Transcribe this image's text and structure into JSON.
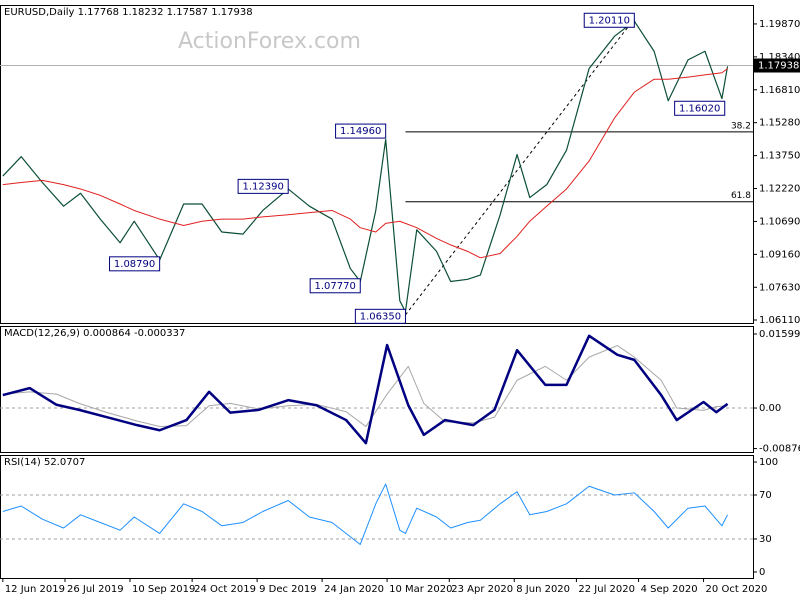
{
  "chart_data": [
    {
      "type": "line",
      "title": "EURUSD,Daily  1.17768 1.18232 1.17587 1.17938",
      "watermark": "ActionForex.com",
      "x": [
        "2019-06-12",
        "2019-06-25",
        "2019-07-10",
        "2019-07-25",
        "2019-08-06",
        "2019-08-20",
        "2019-09-03",
        "2019-09-13",
        "2019-10-01",
        "2019-10-18",
        "2019-10-31",
        "2019-11-14",
        "2019-11-29",
        "2019-12-13",
        "2019-12-31",
        "2020-01-15",
        "2020-01-31",
        "2020-02-13",
        "2020-02-20",
        "2020-03-02",
        "2020-03-09",
        "2020-03-19",
        "2020-03-23",
        "2020-03-31",
        "2020-04-14",
        "2020-04-24",
        "2020-05-06",
        "2020-05-15",
        "2020-05-29",
        "2020-06-10",
        "2020-06-19",
        "2020-07-01",
        "2020-07-15",
        "2020-07-31",
        "2020-08-18",
        "2020-09-01",
        "2020-09-15",
        "2020-09-25",
        "2020-10-09",
        "2020-10-21",
        "2020-11-02",
        "2020-11-06"
      ],
      "series": [
        {
          "color": "#0b4f35",
          "width": 1.2,
          "values": [
            1.128,
            1.137,
            1.125,
            1.114,
            1.12,
            1.108,
            1.097,
            1.107,
            1.089,
            1.115,
            1.115,
            1.102,
            1.101,
            1.112,
            1.122,
            1.114,
            1.108,
            1.085,
            1.079,
            1.112,
            1.145,
            1.07,
            1.065,
            1.103,
            1.093,
            1.079,
            1.08,
            1.082,
            1.11,
            1.138,
            1.118,
            1.124,
            1.14,
            1.178,
            1.193,
            1.2,
            1.186,
            1.163,
            1.182,
            1.186,
            1.164,
            1.179
          ]
        },
        {
          "color": "#e02020",
          "width": 1,
          "values": [
            1.124,
            1.125,
            1.126,
            1.124,
            1.122,
            1.119,
            1.115,
            1.112,
            1.108,
            1.105,
            1.107,
            1.108,
            1.108,
            1.109,
            1.11,
            1.111,
            1.112,
            1.108,
            1.104,
            1.102,
            1.106,
            1.107,
            1.106,
            1.104,
            1.099,
            1.096,
            1.093,
            1.09,
            1.092,
            1.1,
            1.107,
            1.114,
            1.122,
            1.135,
            1.155,
            1.167,
            1.173,
            1.173,
            1.174,
            1.175,
            1.176,
            1.178
          ]
        }
      ],
      "xlim": [
        "2019-06-10",
        "2020-11-24"
      ],
      "ylim": [
        1.0597,
        1.2075
      ],
      "yticks": [
        {
          "value": 1.1987,
          "label": "1.19870"
        },
        {
          "value": 1.1834,
          "label": "1.18340"
        },
        {
          "value": 1.1681,
          "label": "1.16810"
        },
        {
          "value": 1.1528,
          "label": "1.15280"
        },
        {
          "value": 1.1375,
          "label": "1.13750"
        },
        {
          "value": 1.1222,
          "label": "1.12220"
        },
        {
          "value": 1.1069,
          "label": "1.10690"
        },
        {
          "value": 1.0916,
          "label": "1.09160"
        },
        {
          "value": 1.0763,
          "label": "1.07630"
        },
        {
          "value": 1.0611,
          "label": "1.06110"
        }
      ],
      "annotations": [
        {
          "label": "1.20110",
          "x": "2020-09-01",
          "value": 1.2011
        },
        {
          "label": "1.16020",
          "x": "2020-11-04",
          "value": 1.1602
        },
        {
          "label": "1.14960",
          "x": "2020-03-09",
          "value": 1.1496
        },
        {
          "label": "1.12390",
          "x": "2019-12-31",
          "value": 1.1239
        },
        {
          "label": "1.08790",
          "x": "2019-10-01",
          "value": 1.0879
        },
        {
          "label": "1.07770",
          "x": "2020-02-20",
          "value": 1.0777
        },
        {
          "label": "1.06350",
          "x": "2020-03-23",
          "value": 1.0635
        }
      ],
      "fib": [
        {
          "ratio": 38.2,
          "value": 1.14854
        },
        {
          "ratio": 61.8,
          "value": 1.11606
        }
      ],
      "last": 1.17938
    },
    {
      "type": "line",
      "title": "MACD(12,26,9) 0.000864 -0.000337",
      "x": [
        "2019-06-12",
        "2019-07-01",
        "2019-07-20",
        "2019-08-05",
        "2019-08-25",
        "2019-09-15",
        "2019-10-01",
        "2019-10-20",
        "2019-11-05",
        "2019-11-20",
        "2019-12-10",
        "2019-12-31",
        "2020-01-20",
        "2020-02-10",
        "2020-02-24",
        "2020-03-10",
        "2020-03-25",
        "2020-04-05",
        "2020-04-20",
        "2020-05-10",
        "2020-05-25",
        "2020-06-10",
        "2020-06-30",
        "2020-07-15",
        "2020-07-31",
        "2020-08-20",
        "2020-09-01",
        "2020-09-20",
        "2020-10-01",
        "2020-10-20",
        "2020-10-29",
        "2020-11-06"
      ],
      "series": [
        {
          "color": "#a8a8a8",
          "width": 1,
          "values": [
            0.003,
            0.0035,
            0.003,
            0.001,
            -0.001,
            -0.0028,
            -0.004,
            -0.0038,
            0.0005,
            0.001,
            -0.0002,
            0.0005,
            0.0008,
            -0.0008,
            -0.004,
            0.003,
            0.009,
            0.001,
            -0.003,
            -0.0032,
            -0.002,
            0.006,
            0.009,
            0.006,
            0.011,
            0.0135,
            0.011,
            0.006,
            0.0,
            -0.0005,
            0.0003,
            0.0005
          ]
        },
        {
          "color": "#000080",
          "width": 2.5,
          "values": [
            0.0028,
            0.0043,
            0.0007,
            -0.0004,
            -0.002,
            -0.0037,
            -0.0048,
            -0.0026,
            0.0035,
            -0.001,
            -0.0004,
            0.0017,
            0.0006,
            -0.0026,
            -0.0076,
            0.0136,
            0.0006,
            -0.0058,
            -0.0026,
            -0.0037,
            -0.0004,
            0.0125,
            0.005,
            0.005,
            0.0156,
            0.0115,
            0.0104,
            0.0028,
            -0.0026,
            0.0013,
            -0.0009,
            0.0009
          ]
        }
      ],
      "xlim": [
        "2019-06-10",
        "2020-11-24"
      ],
      "ylim": [
        -0.0095,
        0.01772
      ],
      "yticks": [
        0.015991,
        {
          "value": 0,
          "label": "0.00"
        },
        -0.00876
      ],
      "levels": [
        0
      ]
    },
    {
      "type": "line",
      "title": "RSI(14) 52.0707",
      "x": [
        "2019-06-12",
        "2019-06-25",
        "2019-07-10",
        "2019-07-25",
        "2019-08-06",
        "2019-08-20",
        "2019-09-03",
        "2019-09-13",
        "2019-10-01",
        "2019-10-18",
        "2019-10-31",
        "2019-11-14",
        "2019-11-29",
        "2019-12-13",
        "2019-12-31",
        "2020-01-15",
        "2020-01-31",
        "2020-02-13",
        "2020-02-20",
        "2020-03-02",
        "2020-03-09",
        "2020-03-19",
        "2020-03-23",
        "2020-03-31",
        "2020-04-14",
        "2020-04-24",
        "2020-05-06",
        "2020-05-15",
        "2020-05-29",
        "2020-06-10",
        "2020-06-19",
        "2020-07-01",
        "2020-07-15",
        "2020-07-31",
        "2020-08-18",
        "2020-09-01",
        "2020-09-15",
        "2020-09-25",
        "2020-10-09",
        "2020-10-21",
        "2020-11-02",
        "2020-11-06"
      ],
      "series": [
        {
          "color": "#1e90ff",
          "width": 1,
          "values": [
            55,
            60,
            48,
            40,
            52,
            45,
            38,
            50,
            35,
            62,
            55,
            42,
            45,
            55,
            65,
            50,
            45,
            32,
            25,
            62,
            80,
            38,
            35,
            58,
            50,
            40,
            45,
            47,
            62,
            73,
            52,
            55,
            62,
            78,
            70,
            72,
            55,
            40,
            58,
            60,
            42,
            52
          ]
        }
      ],
      "xlim": [
        "2019-06-10",
        "2020-11-24"
      ],
      "ylim": [
        -5.5,
        106.4
      ],
      "yticks": [
        100,
        70,
        30,
        0
      ],
      "levels": [
        70,
        30
      ],
      "xticks": [
        {
          "value": "2019-06-12",
          "label": "12 Jun 2019"
        },
        {
          "value": "2019-07-26",
          "label": "26 Jul 2019"
        },
        {
          "value": "2019-09-10",
          "label": "10 Sep 2019"
        },
        {
          "value": "2019-10-24",
          "label": "24 Oct 2019"
        },
        {
          "value": "2019-12-09",
          "label": "9 Dec 2019"
        },
        {
          "value": "2020-01-24",
          "label": "24 Jan 2020"
        },
        {
          "value": "2020-03-10",
          "label": "10 Mar 2020"
        },
        {
          "value": "2020-04-23",
          "label": "23 Apr 2020"
        },
        {
          "value": "2020-06-08",
          "label": "8 Jun 2020"
        },
        {
          "value": "2020-07-22",
          "label": "22 Jul 2020"
        },
        {
          "value": "2020-09-04",
          "label": "4 Sep 2020"
        },
        {
          "value": "2020-10-20",
          "label": "20 Oct 2020"
        }
      ]
    }
  ]
}
